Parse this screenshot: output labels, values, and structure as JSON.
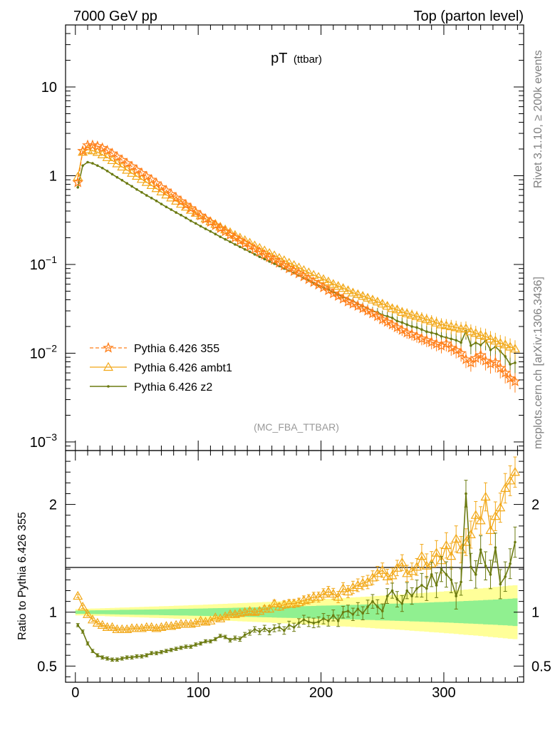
{
  "header": {
    "left": "7000 GeV pp",
    "right": "Top (parton level)"
  },
  "side_text": {
    "top": "Rivet 3.1.10, ≥ 200k events",
    "bottom": "mcplots.cern.ch [arXiv:1306.3436]"
  },
  "colors": {
    "p355": "#ff7f1a",
    "ambt1": "#f2a818",
    "z2": "#6b7a10",
    "band_inner": "#90f090",
    "band_outer": "#ffff99"
  },
  "chart_data": [
    {
      "type": "line",
      "id": "main",
      "title": "pT",
      "title_sub": "(ttbar)",
      "scale": "log",
      "ylim": [
        0.0008,
        50
      ],
      "xlim": [
        -8,
        365
      ],
      "annotation": "(MC_FBA_TTBAR)",
      "ytick_labels": [
        {
          "value": 10,
          "base": "10",
          "exp": ""
        },
        {
          "value": 1,
          "base": "1",
          "exp": ""
        },
        {
          "value": 0.1,
          "base": "10",
          "exp": "−1"
        },
        {
          "value": 0.01,
          "base": "10",
          "exp": "−2"
        },
        {
          "value": 0.001,
          "base": "10",
          "exp": "−3"
        }
      ],
      "legend": [
        {
          "key": "p355",
          "label": "Pythia 6.426 355",
          "marker": "star",
          "dash": true
        },
        {
          "key": "ambt1",
          "label": "Pythia 6.426 ambt1",
          "marker": "triangle",
          "dash": false
        },
        {
          "key": "z2",
          "label": "Pythia 6.426 z2",
          "marker": "dot",
          "dash": false
        }
      ],
      "x": [
        2,
        6,
        10,
        14,
        18,
        22,
        26,
        30,
        34,
        38,
        42,
        46,
        50,
        54,
        58,
        62,
        66,
        70,
        74,
        78,
        82,
        86,
        90,
        94,
        98,
        102,
        106,
        110,
        114,
        118,
        122,
        126,
        130,
        134,
        138,
        142,
        146,
        150,
        154,
        158,
        162,
        166,
        170,
        174,
        178,
        182,
        186,
        190,
        194,
        198,
        202,
        206,
        210,
        214,
        218,
        222,
        226,
        230,
        234,
        238,
        242,
        246,
        250,
        254,
        258,
        262,
        266,
        270,
        274,
        278,
        282,
        286,
        290,
        294,
        298,
        302,
        306,
        310,
        314,
        318,
        322,
        326,
        330,
        334,
        338,
        342,
        346,
        350,
        354,
        358
      ],
      "series": [
        {
          "name": "Pythia 6.426 355",
          "key": "p355",
          "values": [
            0.84,
            1.9,
            2.2,
            2.2,
            2.15,
            2.05,
            1.92,
            1.78,
            1.63,
            1.5,
            1.38,
            1.27,
            1.16,
            1.07,
            0.98,
            0.9,
            0.82,
            0.74,
            0.68,
            0.62,
            0.565,
            0.515,
            0.47,
            0.43,
            0.39,
            0.355,
            0.325,
            0.3,
            0.275,
            0.255,
            0.235,
            0.215,
            0.2,
            0.185,
            0.172,
            0.16,
            0.148,
            0.138,
            0.128,
            0.12,
            0.112,
            0.104,
            0.097,
            0.09,
            0.084,
            0.079,
            0.073,
            0.068,
            0.063,
            0.059,
            0.055,
            0.051,
            0.047,
            0.044,
            0.041,
            0.038,
            0.036,
            0.034,
            0.032,
            0.03,
            0.028,
            0.026,
            0.024,
            0.0225,
            0.021,
            0.0195,
            0.0182,
            0.017,
            0.0163,
            0.0155,
            0.0146,
            0.014,
            0.0133,
            0.0127,
            0.0121,
            0.0128,
            0.0115,
            0.0108,
            0.01,
            0.0085,
            0.0078,
            0.0088,
            0.0095,
            0.0082,
            0.0076,
            0.0079,
            0.0068,
            0.006,
            0.0052,
            0.0048
          ]
        },
        {
          "name": "Pythia 6.426 ambt1",
          "key": "ambt1",
          "values": [
            0.97,
            1.85,
            1.97,
            1.92,
            1.84,
            1.73,
            1.61,
            1.49,
            1.37,
            1.26,
            1.16,
            1.07,
            0.99,
            0.915,
            0.845,
            0.78,
            0.72,
            0.66,
            0.61,
            0.565,
            0.52,
            0.48,
            0.445,
            0.41,
            0.38,
            0.355,
            0.328,
            0.305,
            0.285,
            0.265,
            0.247,
            0.23,
            0.214,
            0.2,
            0.187,
            0.175,
            0.163,
            0.153,
            0.143,
            0.134,
            0.126,
            0.118,
            0.111,
            0.104,
            0.098,
            0.092,
            0.086,
            0.081,
            0.076,
            0.072,
            0.068,
            0.064,
            0.06,
            0.057,
            0.054,
            0.051,
            0.048,
            0.046,
            0.044,
            0.042,
            0.04,
            0.038,
            0.036,
            0.034,
            0.032,
            0.031,
            0.029,
            0.028,
            0.027,
            0.026,
            0.025,
            0.024,
            0.023,
            0.022,
            0.021,
            0.0205,
            0.02,
            0.0195,
            0.0188,
            0.019,
            0.0175,
            0.0168,
            0.016,
            0.0155,
            0.0145,
            0.0138,
            0.013,
            0.0125,
            0.0118,
            0.0112
          ]
        },
        {
          "name": "Pythia 6.426 z2",
          "key": "z2",
          "values": [
            0.74,
            1.3,
            1.42,
            1.38,
            1.3,
            1.22,
            1.13,
            1.04,
            0.96,
            0.89,
            0.82,
            0.76,
            0.7,
            0.65,
            0.6,
            0.56,
            0.52,
            0.48,
            0.445,
            0.415,
            0.385,
            0.36,
            0.335,
            0.31,
            0.29,
            0.27,
            0.252,
            0.236,
            0.22,
            0.205,
            0.192,
            0.18,
            0.168,
            0.158,
            0.148,
            0.139,
            0.13,
            0.122,
            0.115,
            0.108,
            0.102,
            0.096,
            0.09,
            0.085,
            0.08,
            0.075,
            0.07,
            0.066,
            0.062,
            0.058,
            0.055,
            0.052,
            0.049,
            0.046,
            0.043,
            0.041,
            0.039,
            0.036,
            0.034,
            0.032,
            0.03,
            0.029,
            0.027,
            0.026,
            0.025,
            0.023,
            0.0222,
            0.021,
            0.02,
            0.0195,
            0.0185,
            0.0175,
            0.017,
            0.0165,
            0.0155,
            0.015,
            0.0145,
            0.014,
            0.0132,
            0.0178,
            0.0122,
            0.0131,
            0.0124,
            0.0138,
            0.0109,
            0.0118,
            0.0105,
            0.0092,
            0.0075,
            0.0078
          ]
        }
      ]
    },
    {
      "type": "line",
      "id": "ratio",
      "ylabel": "Ratio to Pythia 6.426 355",
      "xlabel": "",
      "ylim": [
        0.35,
        2.5
      ],
      "xlim": [
        -8,
        365
      ],
      "ytick_labels": [
        {
          "value": 2,
          "label": "2"
        },
        {
          "value": 1,
          "label": "1"
        },
        {
          "value": 0.5,
          "label": "0.5"
        }
      ],
      "xtick_labels": [
        {
          "value": 0,
          "label": "0"
        },
        {
          "value": 100,
          "label": "100"
        },
        {
          "value": 200,
          "label": "200"
        },
        {
          "value": 300,
          "label": "300"
        }
      ],
      "band_inner": [
        0.015,
        0.015,
        0.016,
        0.017,
        0.018,
        0.018,
        0.019,
        0.02,
        0.021,
        0.022,
        0.022,
        0.023,
        0.024,
        0.024,
        0.025,
        0.026,
        0.026,
        0.027,
        0.028,
        0.029,
        0.03,
        0.031,
        0.031,
        0.032,
        0.033,
        0.034,
        0.035,
        0.036,
        0.037,
        0.038,
        0.039,
        0.04,
        0.041,
        0.042,
        0.043,
        0.044,
        0.045,
        0.046,
        0.047,
        0.048,
        0.05,
        0.051,
        0.052,
        0.053,
        0.054,
        0.055,
        0.056,
        0.057,
        0.058,
        0.06,
        0.061,
        0.062,
        0.063,
        0.064,
        0.066,
        0.067,
        0.068,
        0.069,
        0.071,
        0.072,
        0.073,
        0.075,
        0.076,
        0.077,
        0.079,
        0.08,
        0.082,
        0.083,
        0.085,
        0.086,
        0.088,
        0.089,
        0.091,
        0.093,
        0.094,
        0.096,
        0.098,
        0.1,
        0.102,
        0.104,
        0.106,
        0.108,
        0.11,
        0.113,
        0.115,
        0.117,
        0.12,
        0.122,
        0.125,
        0.128
      ],
      "band_outer": [
        0.03,
        0.03,
        0.032,
        0.034,
        0.035,
        0.036,
        0.038,
        0.04,
        0.041,
        0.043,
        0.044,
        0.046,
        0.047,
        0.049,
        0.05,
        0.052,
        0.053,
        0.055,
        0.056,
        0.058,
        0.06,
        0.061,
        0.063,
        0.065,
        0.067,
        0.068,
        0.07,
        0.072,
        0.074,
        0.076,
        0.078,
        0.08,
        0.082,
        0.084,
        0.086,
        0.088,
        0.09,
        0.092,
        0.094,
        0.096,
        0.099,
        0.101,
        0.103,
        0.105,
        0.108,
        0.11,
        0.112,
        0.114,
        0.117,
        0.119,
        0.122,
        0.124,
        0.127,
        0.129,
        0.132,
        0.134,
        0.137,
        0.14,
        0.142,
        0.145,
        0.148,
        0.151,
        0.154,
        0.156,
        0.159,
        0.162,
        0.165,
        0.168,
        0.172,
        0.175,
        0.178,
        0.181,
        0.185,
        0.188,
        0.191,
        0.195,
        0.198,
        0.202,
        0.206,
        0.21,
        0.213,
        0.217,
        0.221,
        0.225,
        0.23,
        0.234,
        0.238,
        0.242,
        0.247,
        0.25
      ],
      "series": [
        {
          "name": "Pythia 6.426 ambt1",
          "key": "ambt1",
          "values": [
            1.15,
            1.05,
            0.98,
            0.93,
            0.9,
            0.88,
            0.86,
            0.86,
            0.84,
            0.84,
            0.84,
            0.85,
            0.85,
            0.85,
            0.86,
            0.86,
            0.85,
            0.86,
            0.87,
            0.87,
            0.88,
            0.89,
            0.89,
            0.89,
            0.9,
            0.92,
            0.91,
            0.92,
            0.95,
            0.94,
            0.96,
            0.98,
            0.98,
            0.99,
            1.0,
            1.01,
            1.0,
            1.01,
            1.03,
            1.03,
            1.08,
            1.05,
            1.07,
            1.08,
            1.08,
            1.09,
            1.11,
            1.12,
            1.14,
            1.14,
            1.17,
            1.19,
            1.17,
            1.14,
            1.22,
            1.19,
            1.23,
            1.25,
            1.27,
            1.28,
            1.32,
            1.36,
            1.39,
            1.33,
            1.34,
            1.41,
            1.46,
            1.36,
            1.38,
            1.42,
            1.52,
            1.43,
            1.45,
            1.55,
            1.48,
            1.62,
            1.52,
            1.68,
            1.58,
            1.65,
            1.72,
            1.9,
            1.85,
            2.07,
            1.76,
            1.89,
            1.97,
            2.15,
            2.22,
            2.3
          ]
        },
        {
          "name": "Pythia 6.426 z2",
          "key": "z2",
          "values": [
            0.88,
            0.82,
            0.71,
            0.64,
            0.6,
            0.58,
            0.57,
            0.56,
            0.56,
            0.57,
            0.58,
            0.58,
            0.59,
            0.59,
            0.6,
            0.62,
            0.62,
            0.63,
            0.64,
            0.65,
            0.66,
            0.67,
            0.68,
            0.68,
            0.7,
            0.71,
            0.73,
            0.73,
            0.75,
            0.78,
            0.77,
            0.74,
            0.76,
            0.75,
            0.79,
            0.81,
            0.84,
            0.82,
            0.85,
            0.82,
            0.85,
            0.86,
            0.83,
            0.88,
            0.86,
            0.9,
            0.93,
            0.91,
            0.9,
            0.91,
            0.94,
            0.92,
            0.97,
            0.92,
            1.0,
            1.01,
            0.98,
            1.03,
            0.99,
            1.05,
            1.1,
            1.05,
            1.01,
            1.15,
            1.2,
            1.12,
            1.08,
            1.2,
            1.15,
            1.22,
            1.25,
            1.22,
            1.35,
            1.25,
            1.4,
            1.35,
            1.3,
            1.15,
            1.28,
            2.1,
            1.42,
            1.35,
            1.58,
            1.43,
            1.35,
            1.6,
            1.26,
            1.33,
            1.45,
            1.65
          ]
        }
      ]
    }
  ]
}
